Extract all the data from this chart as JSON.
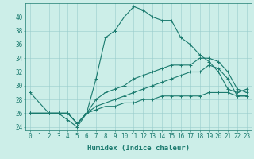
{
  "title": "",
  "xlabel": "Humidex (Indice chaleur)",
  "x_hours": [
    0,
    1,
    2,
    3,
    4,
    5,
    6,
    7,
    8,
    9,
    10,
    11,
    12,
    13,
    14,
    15,
    16,
    17,
    18,
    19,
    20,
    21,
    22,
    23
  ],
  "line1": [
    29,
    27.5,
    26,
    26,
    25,
    24,
    26,
    31,
    37,
    38,
    40,
    41.5,
    41,
    40,
    39.5,
    39.5,
    37,
    36,
    34.5,
    33.5,
    32,
    29.5,
    29,
    29.5
  ],
  "line2": [
    26,
    26,
    26,
    26,
    26,
    24.5,
    26,
    28,
    29,
    29.5,
    30,
    31,
    31.5,
    32,
    32.5,
    33,
    33,
    33,
    34,
    34,
    33.5,
    32,
    29.5,
    29
  ],
  "line3": [
    26,
    26,
    26,
    26,
    26,
    24.5,
    26,
    27,
    27.5,
    28,
    28.5,
    29,
    29.5,
    30,
    30.5,
    31,
    31.5,
    32,
    32,
    33,
    32.5,
    31,
    28.5,
    28.5
  ],
  "line4": [
    26,
    26,
    26,
    26,
    26,
    24.5,
    26,
    26.5,
    27,
    27,
    27.5,
    27.5,
    28,
    28,
    28.5,
    28.5,
    28.5,
    28.5,
    28.5,
    29,
    29,
    29,
    28.5,
    28.5
  ],
  "line_color": "#1a7a6e",
  "bg_color": "#cceee8",
  "grid_color": "#99cccc",
  "ylim": [
    23.5,
    42
  ],
  "yticks": [
    24,
    26,
    28,
    30,
    32,
    34,
    36,
    38,
    40
  ],
  "tick_fontsize": 5.5,
  "xlabel_fontsize": 6.5
}
